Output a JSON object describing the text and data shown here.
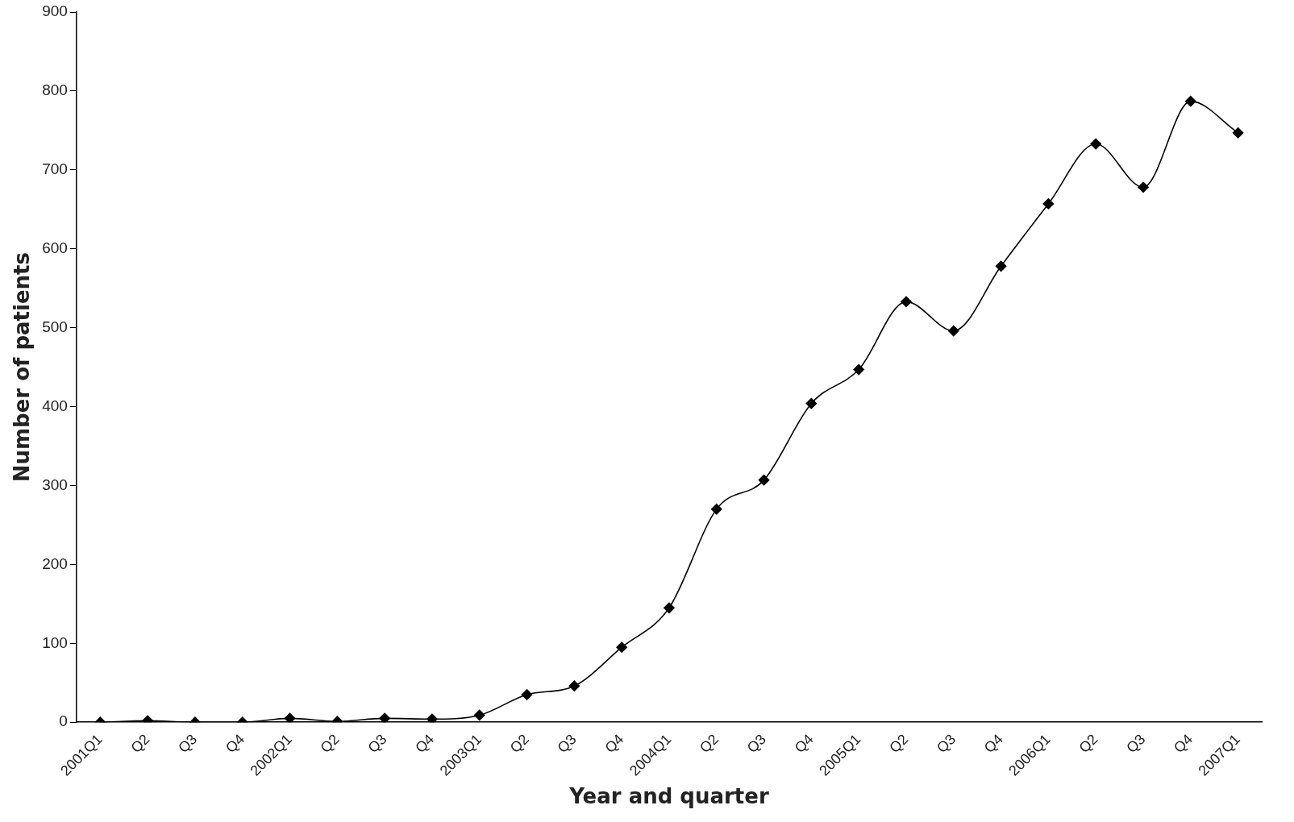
{
  "chart_data": {
    "type": "line",
    "xlabel": "Year and quarter",
    "ylabel": "Number of patients",
    "categories": [
      "2001Q1",
      "Q2",
      "Q3",
      "Q4",
      "2002Q1",
      "Q2",
      "Q3",
      "Q4",
      "2003Q1",
      "Q2",
      "Q3",
      "Q4",
      "2004Q1",
      "Q2",
      "Q3",
      "Q4",
      "2005Q1",
      "Q2",
      "Q3",
      "Q4",
      "2006Q1",
      "Q2",
      "Q3",
      "Q4",
      "2007Q1"
    ],
    "series": [
      {
        "color": "#000000",
        "values": [
          0,
          2,
          0,
          0,
          5,
          1,
          5,
          4,
          9,
          35,
          46,
          95,
          145,
          270,
          307,
          404,
          447,
          533,
          496,
          578,
          657,
          733,
          678,
          787,
          747
        ]
      }
    ],
    "ylim": [
      0,
      900
    ],
    "yticks": [
      0,
      100,
      200,
      300,
      400,
      500,
      600,
      700,
      800,
      900
    ],
    "grid": false,
    "legend": false,
    "marker": "diamond",
    "line_style": "solid"
  }
}
